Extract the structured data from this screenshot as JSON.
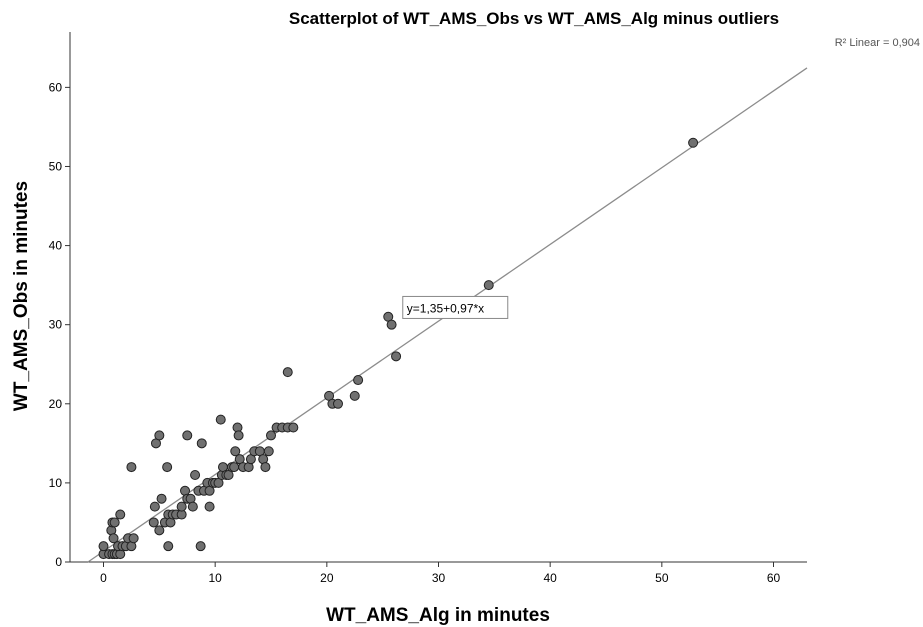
{
  "chart_data": {
    "type": "scatter",
    "title": "Scatterplot of WT_AMS_Obs vs WT_AMS_Alg minus outliers",
    "xlabel": "WT_AMS_Alg in minutes",
    "ylabel": "WT_AMS_Obs in minutes",
    "xlim": [
      -3,
      63
    ],
    "ylim": [
      0,
      67
    ],
    "xticks": [
      0,
      10,
      20,
      30,
      40,
      50,
      60
    ],
    "yticks": [
      0,
      10,
      20,
      30,
      40,
      50,
      60
    ],
    "grid": false,
    "fit_line": {
      "label": "R² Linear = 0,904",
      "equation": "y=1,35+0,97*x",
      "intercept": 1.35,
      "slope": 0.97
    },
    "points": [
      [
        0,
        1
      ],
      [
        0,
        2
      ],
      [
        0.5,
        1
      ],
      [
        0.8,
        1
      ],
      [
        1,
        1
      ],
      [
        1.2,
        1
      ],
      [
        1.5,
        1
      ],
      [
        0.7,
        4
      ],
      [
        0.8,
        5
      ],
      [
        1,
        5
      ],
      [
        0.9,
        3
      ],
      [
        1.5,
        6
      ],
      [
        1.3,
        2
      ],
      [
        1.7,
        2
      ],
      [
        2,
        2
      ],
      [
        2.2,
        3
      ],
      [
        2.5,
        2
      ],
      [
        2.7,
        3
      ],
      [
        2.5,
        12
      ],
      [
        4.5,
        5
      ],
      [
        4.6,
        7
      ],
      [
        4.7,
        15
      ],
      [
        5,
        16
      ],
      [
        5,
        4
      ],
      [
        5.2,
        8
      ],
      [
        5.5,
        5
      ],
      [
        5.7,
        12
      ],
      [
        5.8,
        2
      ],
      [
        5.8,
        6
      ],
      [
        6,
        5
      ],
      [
        6.2,
        6
      ],
      [
        6.5,
        6
      ],
      [
        7,
        6
      ],
      [
        7,
        7
      ],
      [
        7.3,
        9
      ],
      [
        7.5,
        8
      ],
      [
        7.5,
        16
      ],
      [
        7.8,
        8
      ],
      [
        8,
        7
      ],
      [
        8.2,
        11
      ],
      [
        8.5,
        9
      ],
      [
        8.7,
        2
      ],
      [
        8.8,
        15
      ],
      [
        9,
        9
      ],
      [
        9.3,
        10
      ],
      [
        9.5,
        9
      ],
      [
        9.5,
        7
      ],
      [
        9.8,
        10
      ],
      [
        10,
        10
      ],
      [
        10.3,
        10
      ],
      [
        10.5,
        18
      ],
      [
        10.6,
        11
      ],
      [
        10.7,
        12
      ],
      [
        11,
        11
      ],
      [
        11.2,
        11
      ],
      [
        11.5,
        12
      ],
      [
        11.7,
        12
      ],
      [
        11.8,
        14
      ],
      [
        12,
        17
      ],
      [
        12.1,
        16
      ],
      [
        12.2,
        13
      ],
      [
        12.5,
        12
      ],
      [
        13,
        12
      ],
      [
        13.2,
        13
      ],
      [
        13.5,
        14
      ],
      [
        14,
        14
      ],
      [
        14.3,
        13
      ],
      [
        14.5,
        12
      ],
      [
        14.8,
        14
      ],
      [
        15,
        16
      ],
      [
        15.5,
        17
      ],
      [
        16,
        17
      ],
      [
        16.5,
        17
      ],
      [
        17,
        17
      ],
      [
        16.5,
        24
      ],
      [
        20.2,
        21
      ],
      [
        20.5,
        20
      ],
      [
        21,
        20
      ],
      [
        22.5,
        21
      ],
      [
        22.8,
        23
      ],
      [
        25.5,
        31
      ],
      [
        25.8,
        30
      ],
      [
        26.2,
        26
      ],
      [
        34.5,
        35
      ],
      [
        52.8,
        53
      ]
    ]
  }
}
